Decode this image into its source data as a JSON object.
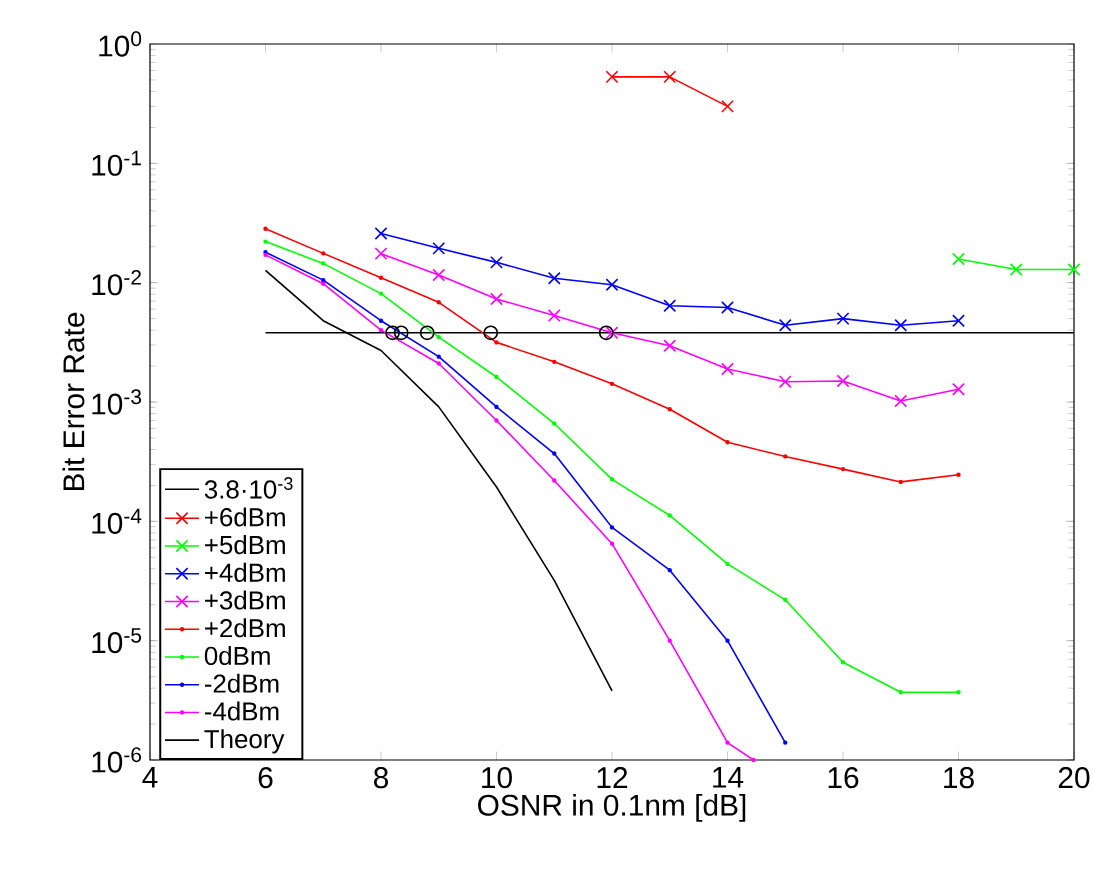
{
  "chart_data": {
    "type": "line",
    "xlabel": "OSNR in 0.1nm [dB]",
    "ylabel": "Bit Error Rate",
    "log": "y",
    "grid": false,
    "legend": "bottom left",
    "xlim": [
      4,
      20
    ],
    "xticks": [
      4,
      6,
      8,
      10,
      12,
      14,
      16,
      18,
      20
    ],
    "ylim": [
      1e-06,
      1
    ],
    "yticks": [
      {
        "value": 1e-06,
        "label": "10$^{-6}$"
      },
      {
        "value": 1e-05,
        "label": "10$^{-5}$"
      },
      {
        "value": 0.0001,
        "label": "10$^{-4}$"
      },
      {
        "value": 0.001,
        "label": "10$^{-3}$"
      },
      {
        "value": 0.01,
        "label": "10$^{-2}$"
      },
      {
        "value": 0.1,
        "label": "10$^{-1}$"
      },
      {
        "value": 1,
        "label": "10$^{0}$"
      }
    ],
    "series": [
      {
        "name": "3.8·10$^{-3}$",
        "marker": "none",
        "color": "#000000",
        "x": [
          6,
          20
        ],
        "values": [
          0.0038,
          0.0038
        ]
      },
      {
        "name": "+6dBm",
        "marker": "cross",
        "color": "#ff0000",
        "x": [
          12,
          13,
          14
        ],
        "values": [
          0.53,
          0.53,
          0.3
        ]
      },
      {
        "name": "+5dBm",
        "marker": "cross",
        "color": "#00ff00",
        "x": [
          18,
          19,
          20
        ],
        "values": [
          0.0158,
          0.0129,
          0.0129
        ]
      },
      {
        "name": "+4dBm",
        "marker": "cross",
        "color": "#0000ff",
        "x": [
          8,
          9,
          10,
          11,
          12,
          13,
          14,
          15,
          16,
          17,
          18
        ],
        "values": [
          0.0258,
          0.0194,
          0.0148,
          0.0109,
          0.0096,
          0.0064,
          0.0062,
          0.0044,
          0.005,
          0.0044,
          0.0048
        ]
      },
      {
        "name": "+3dBm",
        "marker": "cross",
        "color": "#ff00ff",
        "x": [
          8,
          9,
          10,
          11,
          12,
          13,
          14,
          15,
          16,
          17,
          18
        ],
        "values": [
          0.0175,
          0.0116,
          0.0073,
          0.0053,
          0.0038,
          0.00296,
          0.00189,
          0.00148,
          0.0015,
          0.00102,
          0.00128
        ]
      },
      {
        "name": "+2dBm",
        "marker": "circle",
        "color": "#ff0000",
        "x": [
          6,
          7,
          8,
          9,
          10,
          11,
          12,
          13,
          14,
          15,
          16,
          17,
          18
        ],
        "values": [
          0.0283,
          0.0176,
          0.011,
          0.00685,
          0.00316,
          0.00217,
          0.00142,
          0.00087,
          0.00046,
          0.00035,
          0.000274,
          0.000214,
          0.000246
        ]
      },
      {
        "name": "0dBm",
        "marker": "circle",
        "color": "#00ff00",
        "x": [
          6,
          7,
          8,
          9,
          10,
          11,
          12,
          13,
          14,
          15,
          16,
          17,
          18
        ],
        "values": [
          0.0221,
          0.0145,
          0.0081,
          0.0035,
          0.00162,
          0.00066,
          0.000225,
          0.000112,
          4.4e-05,
          2.2e-05,
          6.6e-06,
          3.7e-06,
          3.7e-06
        ]
      },
      {
        "name": "-2dBm",
        "marker": "circle",
        "color": "#0000ff",
        "x": [
          6,
          7,
          8,
          9,
          10,
          11,
          12,
          13,
          14,
          15
        ],
        "values": [
          0.018,
          0.0105,
          0.0048,
          0.0024,
          0.00091,
          0.00037,
          8.9e-05,
          3.9e-05,
          1e-05,
          1.4e-06
        ]
      },
      {
        "name": "-4dBm",
        "marker": "circle",
        "color": "#ff00ff",
        "x": [
          6,
          7,
          8,
          9,
          10,
          11,
          12,
          13,
          14,
          14.45
        ],
        "values": [
          0.0171,
          0.0098,
          0.004,
          0.0021,
          0.0007,
          0.00022,
          6.5e-05,
          1e-05,
          1.4e-06,
          1e-06
        ]
      },
      {
        "name": "Theory",
        "marker": "none",
        "color": "#000000",
        "x": [
          6,
          7,
          8,
          9,
          10,
          11,
          12
        ],
        "values": [
          0.0127,
          0.0048,
          0.0027,
          0.00091,
          0.000194,
          3.2e-05,
          3.8e-06
        ]
      },
      {
        "type": "scatter",
        "marker": "circle",
        "color": "#000000",
        "x": [
          8.2,
          8.35,
          8.8,
          9.9,
          11.9
        ],
        "values": [
          0.0038,
          0.0038,
          0.0038,
          0.0038,
          0.0038
        ]
      }
    ]
  }
}
